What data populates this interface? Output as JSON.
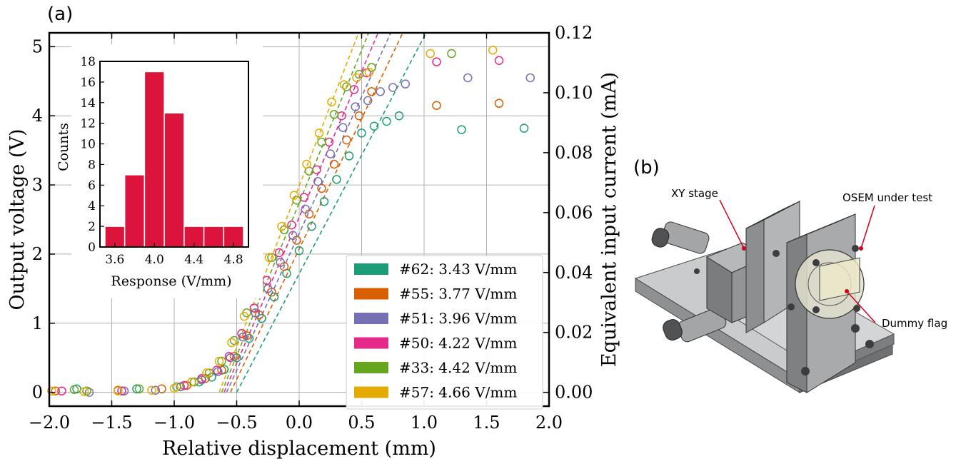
{
  "panel_a": {
    "label": "(a)",
    "chart_data": {
      "type": "scatter",
      "xlabel": "Relative displacement (mm)",
      "ylabel": "Output voltage (V)",
      "y2label": "Equivalent input current (mA)",
      "xlim": [
        -2.0,
        2.0
      ],
      "ylim": [
        -0.2,
        5.2
      ],
      "y2lim": [
        -0.004615,
        0.12
      ],
      "x_ticks": [
        "−2.0",
        "−1.5",
        "−1.0",
        "−0.5",
        "0.0",
        "0.5",
        "1.0",
        "1.5",
        "2.0"
      ],
      "y_ticks": [
        "0",
        "1",
        "2",
        "3",
        "4",
        "5"
      ],
      "y2_ticks": [
        "0.00",
        "0.02",
        "0.04",
        "0.06",
        "0.08",
        "0.10",
        "0.12"
      ],
      "grid": true,
      "legend_position": "lower-right",
      "series": [
        {
          "name": "#62:  3.43 V/mm",
          "color": "#1b9e77",
          "fit": {
            "slope": 3.43,
            "x_intercept": -0.5
          },
          "x": [
            -1.78,
            -1.3,
            -0.95,
            -0.8,
            -0.7,
            -0.6,
            -0.5,
            -0.4,
            -0.3,
            -0.2,
            -0.1,
            0.0,
            0.1,
            0.2,
            0.3,
            0.4,
            0.5,
            0.6,
            0.7,
            0.8,
            1.3,
            1.8
          ],
          "y": [
            0.05,
            0.05,
            0.08,
            0.15,
            0.22,
            0.33,
            0.5,
            0.78,
            1.07,
            1.38,
            1.72,
            2.05,
            2.4,
            2.76,
            3.08,
            3.42,
            3.75,
            3.85,
            3.92,
            4.0,
            3.8,
            3.82
          ]
        },
        {
          "name": "#55:  3.77 V/mm",
          "color": "#d95f02",
          "fit": {
            "slope": 3.77,
            "x_intercept": -0.55
          },
          "x": [
            -1.95,
            -1.45,
            -1.1,
            -0.9,
            -0.75,
            -0.62,
            -0.52,
            -0.42,
            -0.32,
            -0.22,
            -0.12,
            -0.02,
            0.08,
            0.18,
            0.28,
            0.38,
            0.48,
            0.58,
            1.1,
            1.6
          ],
          "y": [
            0.02,
            0.03,
            0.05,
            0.1,
            0.2,
            0.32,
            0.52,
            0.82,
            1.12,
            1.45,
            1.82,
            2.2,
            2.58,
            2.95,
            3.3,
            3.65,
            4.0,
            4.35,
            4.15,
            4.18
          ]
        },
        {
          "name": "#51:  3.96 V/mm",
          "color": "#7570b3",
          "fit": {
            "slope": 3.96,
            "x_intercept": -0.58
          },
          "x": [
            -1.68,
            -1.4,
            -1.15,
            -0.95,
            -0.78,
            -0.65,
            -0.55,
            -0.45,
            -0.35,
            -0.25,
            -0.15,
            -0.05,
            0.05,
            0.15,
            0.25,
            0.35,
            0.45,
            0.55,
            0.65,
            0.75,
            0.85,
            1.35,
            1.85
          ],
          "y": [
            0.0,
            0.02,
            0.03,
            0.08,
            0.18,
            0.3,
            0.5,
            0.8,
            1.15,
            1.5,
            1.88,
            2.27,
            2.65,
            3.05,
            3.45,
            3.83,
            4.13,
            4.22,
            4.35,
            4.41,
            4.46,
            4.55,
            4.55
          ]
        },
        {
          "name": "#50:  4.22 V/mm",
          "color": "#e7298a",
          "fit": {
            "slope": 4.22,
            "x_intercept": -0.6
          },
          "x": [
            -1.9,
            -1.42,
            -0.92,
            -0.78,
            -0.66,
            -0.56,
            -0.46,
            -0.36,
            -0.26,
            -0.16,
            -0.06,
            0.04,
            0.14,
            0.24,
            0.34,
            0.44,
            0.54,
            1.1,
            1.6
          ],
          "y": [
            0.02,
            0.02,
            0.1,
            0.2,
            0.32,
            0.52,
            0.85,
            1.22,
            1.62,
            2.02,
            2.42,
            2.82,
            3.22,
            3.62,
            4.0,
            4.38,
            4.62,
            4.78,
            4.8
          ]
        },
        {
          "name": "#33:  4.42 V/mm",
          "color": "#66a61e",
          "fit": {
            "slope": 4.42,
            "x_intercept": -0.62
          },
          "x": [
            -1.8,
            -1.7,
            -1.28,
            -0.98,
            -0.84,
            -0.72,
            -0.62,
            -0.52,
            -0.42,
            -0.32,
            -0.22,
            -0.12,
            -0.02,
            0.08,
            0.18,
            0.28,
            0.38,
            0.48,
            0.58,
            1.22
          ],
          "y": [
            0.04,
            0.02,
            0.05,
            0.08,
            0.15,
            0.28,
            0.45,
            0.75,
            1.15,
            1.55,
            1.95,
            2.35,
            2.78,
            3.2,
            3.62,
            4.02,
            4.42,
            4.6,
            4.7,
            4.9
          ]
        },
        {
          "name": "#57:  4.66 V/mm",
          "color": "#e6ab02",
          "fit": {
            "slope": 4.66,
            "x_intercept": -0.64
          },
          "x": [
            -1.98,
            -1.72,
            -1.45,
            -1.18,
            -1.0,
            -0.86,
            -0.74,
            -0.64,
            -0.54,
            -0.44,
            -0.34,
            -0.24,
            -0.14,
            -0.04,
            0.06,
            0.16,
            0.26,
            0.36,
            0.46,
            0.56,
            1.05,
            1.55
          ],
          "y": [
            0.02,
            0.01,
            0.02,
            0.03,
            0.06,
            0.15,
            0.28,
            0.45,
            0.72,
            1.1,
            1.52,
            1.95,
            2.4,
            2.85,
            3.3,
            3.75,
            4.2,
            4.45,
            4.55,
            4.63,
            4.9,
            4.95
          ]
        }
      ]
    },
    "inset_chart": {
      "type": "bar",
      "xlabel": "Response (V/mm)",
      "ylabel": "Counts",
      "color": "#dc143c",
      "xlim": [
        3.45,
        4.95
      ],
      "ylim": [
        0,
        18
      ],
      "x_ticks": [
        "3.6",
        "4.0",
        "4.4",
        "4.8"
      ],
      "y_ticks": [
        "0",
        "2",
        "4",
        "6",
        "8",
        "10",
        "12",
        "14",
        "16",
        "18"
      ],
      "bins": [
        3.5,
        3.7,
        3.9,
        4.1,
        4.3,
        4.5,
        4.7,
        4.9
      ],
      "values": [
        2,
        7,
        17,
        13,
        2,
        2,
        2
      ]
    }
  },
  "panel_b": {
    "label": "(b)",
    "callouts": [
      "XY stage",
      "OSEM under test",
      "Dummy flag"
    ]
  }
}
